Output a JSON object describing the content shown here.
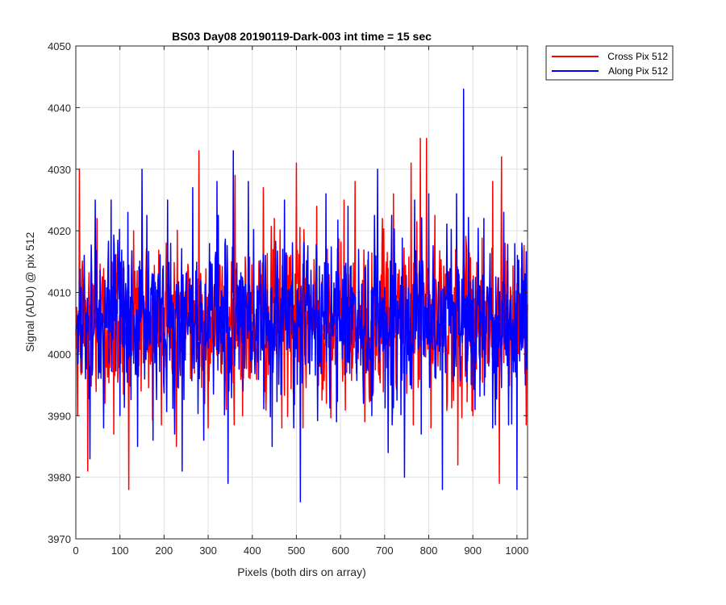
{
  "chart_data": {
    "type": "line",
    "title": "BS03 Day08 20190119-Dark-003 int time = 15 sec",
    "xlabel": "Pixels (both dirs on array)",
    "ylabel": "Signal (ADU) @ pix 512",
    "xlim": [
      0,
      1024
    ],
    "ylim": [
      3970,
      4050
    ],
    "xticks": [
      0,
      100,
      200,
      300,
      400,
      500,
      600,
      700,
      800,
      900,
      1000
    ],
    "yticks": [
      3970,
      3980,
      3990,
      4000,
      4010,
      4020,
      4030,
      4040,
      4050
    ],
    "grid": true,
    "legend_position": "outside-top-right",
    "series": [
      {
        "name": "Cross Pix 512",
        "color": "#ff0000",
        "mean": 4005.5,
        "x": [
          0,
          4,
          8,
          27,
          48,
          66,
          86,
          120,
          131,
          160,
          205,
          228,
          260,
          279,
          300,
          341,
          361,
          395,
          425,
          450,
          467,
          487,
          500,
          515,
          546,
          570,
          608,
          633,
          655,
          695,
          720,
          760,
          781,
          795,
          805,
          838,
          866,
          900,
          945,
          960,
          965,
          981,
          1010,
          1024
        ],
        "values": [
          4004,
          3990,
          4030,
          3981,
          4022,
          3992,
          3987,
          3978,
          4020,
          4017,
          4018,
          3985,
          3996,
          4033,
          3988,
          3991,
          4029,
          3996,
          4027,
          4022,
          3988,
          4016,
          4031,
          3988,
          4024,
          4017,
          4025,
          4028,
          3989,
          4022,
          4026,
          4031,
          4035,
          4035,
          3988,
          4013,
          3982,
          3990,
          4028,
          3979,
          4032,
          3993,
          4014,
          4008
        ]
      },
      {
        "name": "Along Pix 512",
        "color": "#0000ff",
        "mean": 4005.5,
        "x": [
          0,
          19,
          32,
          44,
          63,
          80,
          100,
          118,
          140,
          150,
          175,
          208,
          224,
          241,
          265,
          290,
          320,
          345,
          357,
          379,
          391,
          430,
          445,
          473,
          494,
          509,
          525,
          567,
          591,
          617,
          652,
          671,
          684,
          708,
          745,
          768,
          783,
          800,
          831,
          863,
          879,
          905,
          925,
          945,
          970,
          1000,
          1011,
          1024
        ],
        "values": [
          4004,
          4016,
          3983,
          4025,
          3988,
          4025,
          3990,
          4023,
          3985,
          4030,
          3986,
          4025,
          3987,
          3981,
          4027,
          3986,
          4028,
          3979,
          4033,
          3994,
          4028,
          4016,
          3985,
          4025,
          3988,
          3976,
          4014,
          4026,
          3989,
          4024,
          3992,
          3990,
          4030,
          3984,
          3980,
          4025,
          3987,
          4026,
          3978,
          4026,
          4043,
          3991,
          4022,
          3988,
          4023,
          3978,
          4018,
          4006
        ]
      }
    ]
  }
}
